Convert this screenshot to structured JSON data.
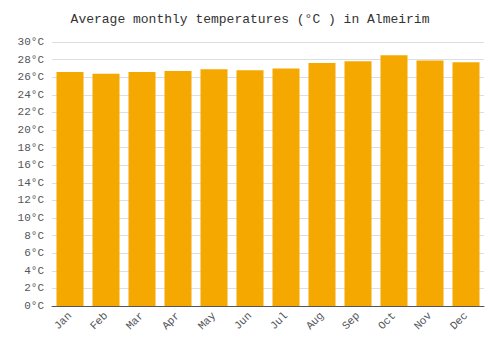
{
  "chart_data": {
    "type": "bar",
    "title": "Average monthly temperatures (°C ) in Almeirim",
    "categories": [
      "Jan",
      "Feb",
      "Mar",
      "Apr",
      "May",
      "Jun",
      "Jul",
      "Aug",
      "Sep",
      "Oct",
      "Nov",
      "Dec"
    ],
    "values": [
      26.6,
      26.4,
      26.6,
      26.7,
      26.9,
      26.8,
      27.0,
      27.6,
      27.8,
      28.5,
      27.9,
      27.7
    ],
    "color": "#F5A800",
    "ylim": [
      0,
      30
    ],
    "yticks": [
      {
        "value": 0,
        "label": "0°C"
      },
      {
        "value": 2,
        "label": "2°C"
      },
      {
        "value": 4,
        "label": "4°C"
      },
      {
        "value": 6,
        "label": "6°C"
      },
      {
        "value": 8,
        "label": "8°C"
      },
      {
        "value": 10,
        "label": "10°C"
      },
      {
        "value": 12,
        "label": "12°C"
      },
      {
        "value": 14,
        "label": "14°C"
      },
      {
        "value": 16,
        "label": "16°C"
      },
      {
        "value": 18,
        "label": "18°C"
      },
      {
        "value": 20,
        "label": "20°C"
      },
      {
        "value": 22,
        "label": "22°C"
      },
      {
        "value": 24,
        "label": "24°C"
      },
      {
        "value": 26,
        "label": "26°C"
      },
      {
        "value": 28,
        "label": "28°C"
      },
      {
        "value": 30,
        "label": "30°C"
      }
    ],
    "grid": true
  }
}
